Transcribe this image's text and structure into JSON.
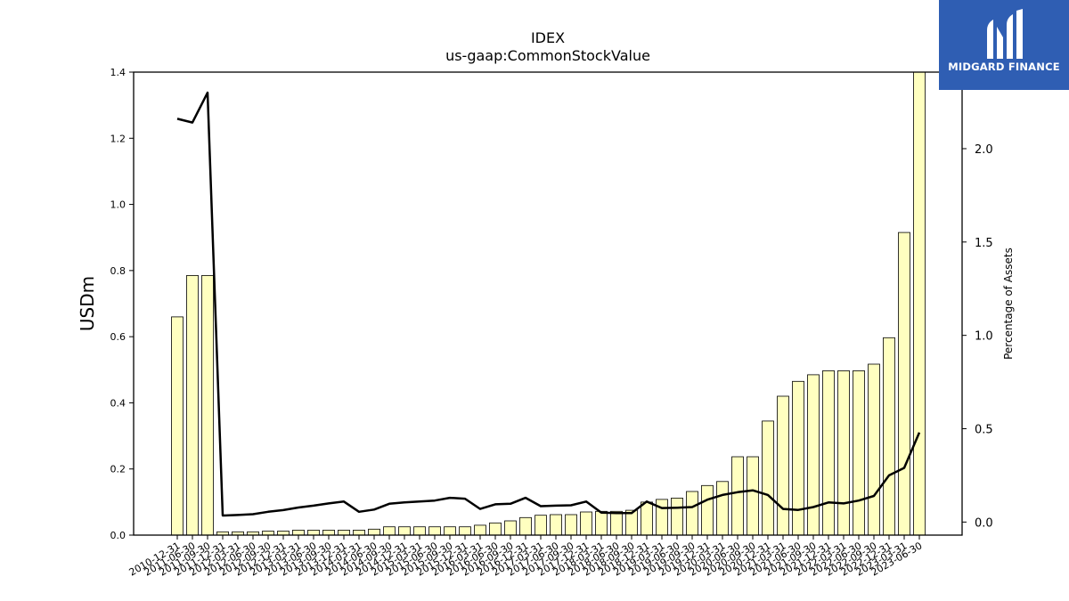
{
  "chart_data": {
    "type": "bar",
    "title": "IDEX",
    "subtitle": "us-gaap:CommonStockValue",
    "ylabel": "USDm",
    "y2label": "Percentage of Assets",
    "ylim": [
      0,
      1.4
    ],
    "y2lim": [
      -0.07,
      2.41
    ],
    "yticks": [
      "0.0",
      "0.2",
      "0.4",
      "0.6",
      "0.8",
      "1.0",
      "1.2",
      "1.4"
    ],
    "y2ticks": [
      "0.0",
      "0.5",
      "1.0",
      "1.5",
      "2.0"
    ],
    "categories": [
      "2010-12-31",
      "2011-06-30",
      "2011-09-30",
      "2011-12-31",
      "2012-03-31",
      "2012-06-30",
      "2012-09-30",
      "2012-12-31",
      "2013-03-31",
      "2013-06-30",
      "2013-09-30",
      "2013-12-31",
      "2014-03-31",
      "2014-06-30",
      "2014-09-30",
      "2014-12-31",
      "2015-03-31",
      "2015-06-30",
      "2015-09-30",
      "2015-12-31",
      "2016-03-31",
      "2016-06-30",
      "2016-09-30",
      "2016-12-31",
      "2017-03-31",
      "2017-06-30",
      "2017-09-30",
      "2017-12-31",
      "2018-03-31",
      "2018-06-30",
      "2018-09-30",
      "2018-12-31",
      "2019-03-31",
      "2019-06-30",
      "2019-09-30",
      "2019-12-31",
      "2020-03-31",
      "2020-06-30",
      "2020-09-30",
      "2020-12-31",
      "2021-03-31",
      "2021-06-30",
      "2021-09-30",
      "2021-12-31",
      "2022-03-31",
      "2022-06-30",
      "2022-09-30",
      "2022-12-31",
      "2023-03-31",
      "2023-06-30"
    ],
    "series": [
      {
        "name": "",
        "kind": "bar",
        "axis": "left",
        "color": "#ffffc0",
        "values": [
          0.66,
          0.785,
          0.785,
          0.01,
          0.01,
          0.01,
          0.012,
          0.012,
          0.015,
          0.015,
          0.015,
          0.015,
          0.015,
          0.018,
          0.025,
          0.025,
          0.025,
          0.025,
          0.025,
          0.025,
          0.03,
          0.037,
          0.043,
          0.053,
          0.06,
          0.062,
          0.062,
          0.07,
          0.072,
          0.072,
          0.075,
          0.1,
          0.108,
          0.112,
          0.132,
          0.15,
          0.162,
          0.237,
          0.237,
          0.345,
          0.42,
          0.465,
          0.485,
          0.497,
          0.497,
          0.497,
          0.517,
          0.597,
          0.915,
          1.41
        ]
      },
      {
        "name": "",
        "kind": "line",
        "axis": "right",
        "color": "#000000",
        "values": [
          2.16,
          2.14,
          2.3,
          0.035,
          0.038,
          0.042,
          0.055,
          0.064,
          0.078,
          0.088,
          0.1,
          0.11,
          0.055,
          0.067,
          0.098,
          0.105,
          0.11,
          0.115,
          0.13,
          0.125,
          0.07,
          0.095,
          0.098,
          0.13,
          0.085,
          0.088,
          0.09,
          0.11,
          0.05,
          0.048,
          0.048,
          0.11,
          0.075,
          0.077,
          0.08,
          0.12,
          0.145,
          0.16,
          0.17,
          0.145,
          0.07,
          0.065,
          0.08,
          0.105,
          0.1,
          0.115,
          0.14,
          0.25,
          0.29,
          0.48
        ]
      }
    ],
    "grid": false,
    "legend": "none"
  },
  "logo": {
    "text": "MIDGARD FINANCE",
    "background": "#2f5eb3"
  }
}
